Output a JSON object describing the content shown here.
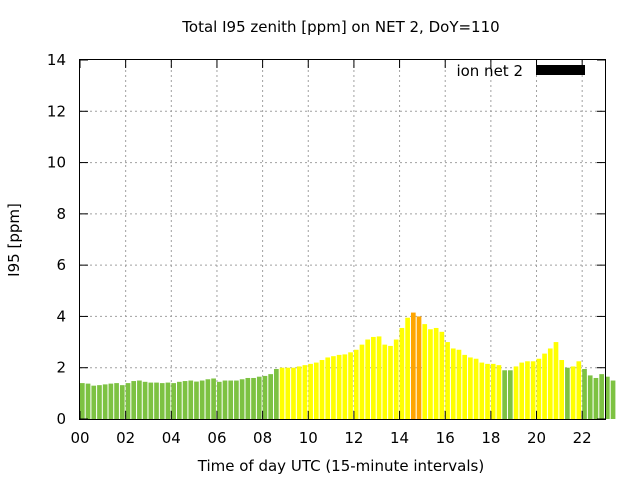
{
  "chart_data": {
    "type": "bar",
    "title": "Total I95 zenith [ppm] on NET 2, DoY=110",
    "xlabel": "Time of day UTC (15-minute intervals)",
    "ylabel": "I95 [ppm]",
    "xlim": [
      0,
      23.0
    ],
    "ylim": [
      0,
      14
    ],
    "x_ticks": [
      {
        "value": 0,
        "label": "00"
      },
      {
        "value": 2,
        "label": "02"
      },
      {
        "value": 4,
        "label": "04"
      },
      {
        "value": 6,
        "label": "06"
      },
      {
        "value": 8,
        "label": "08"
      },
      {
        "value": 10,
        "label": "10"
      },
      {
        "value": 12,
        "label": "12"
      },
      {
        "value": 14,
        "label": "14"
      },
      {
        "value": 16,
        "label": "16"
      },
      {
        "value": 18,
        "label": "18"
      },
      {
        "value": 20,
        "label": "20"
      },
      {
        "value": 22,
        "label": "22"
      }
    ],
    "y_ticks": [
      {
        "value": 0,
        "label": "0"
      },
      {
        "value": 2,
        "label": "2"
      },
      {
        "value": 4,
        "label": "4"
      },
      {
        "value": 6,
        "label": "6"
      },
      {
        "value": 8,
        "label": "8"
      },
      {
        "value": 10,
        "label": "10"
      },
      {
        "value": 12,
        "label": "12"
      },
      {
        "value": 14,
        "label": "14"
      }
    ],
    "grid": true,
    "legend": {
      "placement": "top-right",
      "label": "ion net 2",
      "color": "#000000"
    },
    "colors": {
      "green": "#7dc242",
      "yellow": "#ffff00",
      "orange": "#ffa500"
    },
    "interval_hours": 0.25,
    "values": [
      1.4,
      1.38,
      1.3,
      1.32,
      1.35,
      1.38,
      1.4,
      1.32,
      1.4,
      1.48,
      1.5,
      1.45,
      1.42,
      1.42,
      1.4,
      1.42,
      1.4,
      1.45,
      1.48,
      1.5,
      1.46,
      1.5,
      1.55,
      1.58,
      1.45,
      1.5,
      1.5,
      1.5,
      1.55,
      1.6,
      1.6,
      1.65,
      1.68,
      1.75,
      1.95,
      2.0,
      2.0,
      2.0,
      2.05,
      2.1,
      2.15,
      2.2,
      2.3,
      2.4,
      2.45,
      2.5,
      2.52,
      2.6,
      2.7,
      2.9,
      3.1,
      3.2,
      3.22,
      2.9,
      2.85,
      3.1,
      3.55,
      3.95,
      4.15,
      4.0,
      3.7,
      3.5,
      3.55,
      3.4,
      3.0,
      2.75,
      2.7,
      2.5,
      2.4,
      2.35,
      2.2,
      2.15,
      2.15,
      2.1,
      1.9,
      1.9,
      2.05,
      2.2,
      2.25,
      2.25,
      2.35,
      2.55,
      2.75,
      3.0,
      2.3,
      2.0,
      2.05,
      2.25,
      1.95,
      1.7,
      1.6,
      1.75,
      1.65,
      1.5
    ],
    "value_colors": [
      "green",
      "green",
      "green",
      "green",
      "green",
      "green",
      "green",
      "green",
      "green",
      "green",
      "green",
      "green",
      "green",
      "green",
      "green",
      "green",
      "green",
      "green",
      "green",
      "green",
      "green",
      "green",
      "green",
      "green",
      "green",
      "green",
      "green",
      "green",
      "green",
      "green",
      "green",
      "green",
      "green",
      "green",
      "green",
      "yellow",
      "yellow",
      "yellow",
      "yellow",
      "yellow",
      "yellow",
      "yellow",
      "yellow",
      "yellow",
      "yellow",
      "yellow",
      "yellow",
      "yellow",
      "yellow",
      "yellow",
      "yellow",
      "yellow",
      "yellow",
      "yellow",
      "yellow",
      "yellow",
      "yellow",
      "yellow",
      "orange",
      "orange",
      "yellow",
      "yellow",
      "yellow",
      "yellow",
      "yellow",
      "yellow",
      "yellow",
      "yellow",
      "yellow",
      "yellow",
      "yellow",
      "yellow",
      "yellow",
      "yellow",
      "green",
      "green",
      "yellow",
      "yellow",
      "yellow",
      "yellow",
      "yellow",
      "yellow",
      "yellow",
      "yellow",
      "yellow",
      "green",
      "yellow",
      "yellow",
      "green",
      "green",
      "green",
      "green",
      "green",
      "green"
    ]
  }
}
